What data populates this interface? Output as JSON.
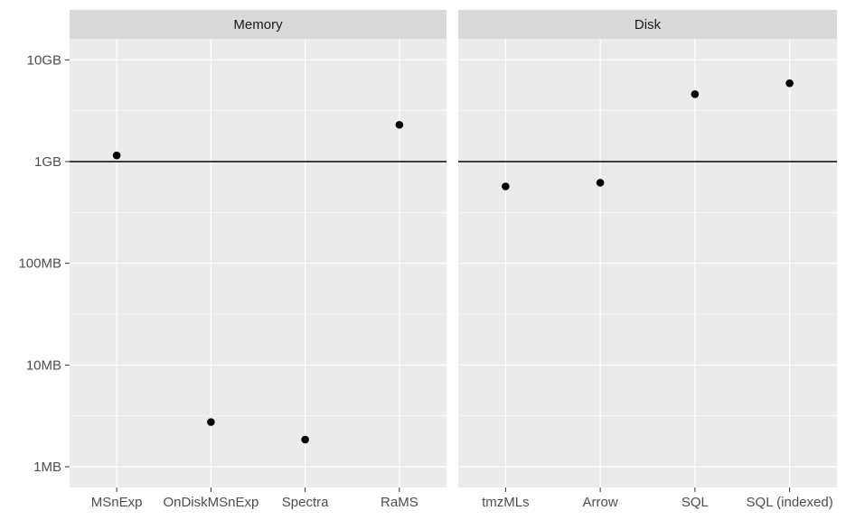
{
  "chart_data": {
    "type": "scatter",
    "y_scale": "log10",
    "y_unit": "bytes",
    "y_ticks": [
      {
        "value": 1000000,
        "label": "1MB"
      },
      {
        "value": 10000000,
        "label": "10MB"
      },
      {
        "value": 100000000,
        "label": "100MB"
      },
      {
        "value": 1000000000,
        "label": "1GB"
      },
      {
        "value": 10000000000,
        "label": "10GB"
      }
    ],
    "ylim": [
      500000,
      15000000000
    ],
    "reference_line": {
      "value": 1000000000,
      "label": "1GB"
    },
    "grid": true,
    "panels": [
      {
        "title": "Memory",
        "categories": [
          "MSnExp",
          "OnDiskMSnExp",
          "Spectra",
          "RaMS"
        ],
        "values": [
          1150000000,
          2750000,
          1850000,
          2300000000
        ]
      },
      {
        "title": "Disk",
        "categories": [
          "tmzMLs",
          "Arrow",
          "SQL",
          "SQL (indexed)"
        ],
        "values": [
          570000000,
          620000000,
          4600000000,
          5900000000
        ]
      }
    ],
    "colors": {
      "panel_background": "#ebebeb",
      "strip_background": "#d9d9d9",
      "grid_major": "#ffffff",
      "point": "#000000",
      "reference_line": "#000000",
      "tick_text": "#4d4d4d"
    }
  }
}
